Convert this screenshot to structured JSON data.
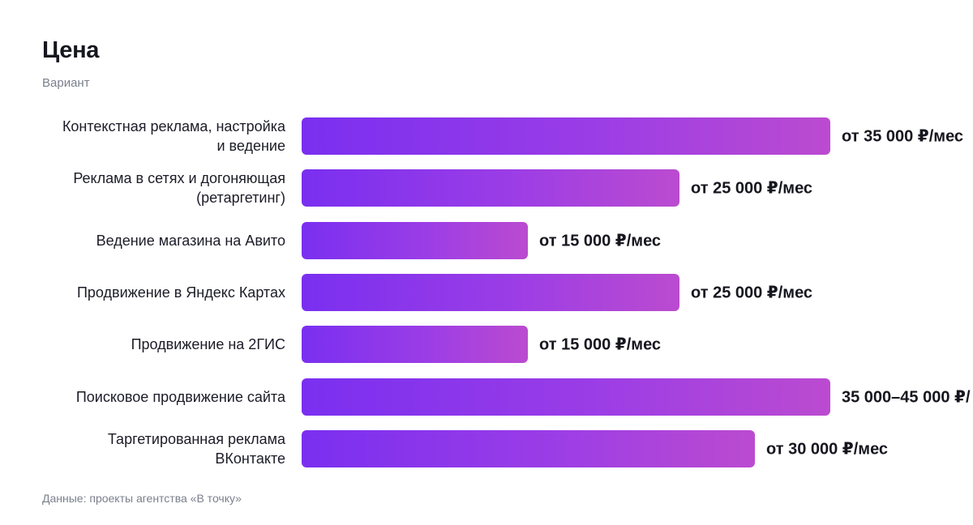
{
  "chart_data": {
    "type": "bar",
    "orientation": "horizontal",
    "title": "Цена",
    "subtitle": "Вариант",
    "source": "Данные: проекты агентства «В точку»",
    "categories": [
      "Контекстная реклама, настройка\nи ведение",
      "Реклама в сетях и догоняющая\n(ретаргетинг)",
      "Ведение магазина на Авито",
      "Продвижение в Яндекс Картах",
      "Продвижение на 2ГИС",
      "Поисковое продвижение сайта",
      "Таргетированная реклама\nВКонтакте"
    ],
    "values": [
      35000,
      25000,
      15000,
      25000,
      15000,
      35000,
      30000
    ],
    "value_labels": [
      "от 35 000 ₽/мес",
      "от 25 000 ₽/мес",
      "от 15 000 ₽/мес",
      "от 25 000 ₽/мес",
      "от 15 000 ₽/мес",
      "35 000–45 000 ₽/",
      "от 30 000 ₽/мес"
    ],
    "xlim": [
      0,
      35000
    ],
    "grid": false,
    "colors": {
      "bar_start": "#7a2ff0",
      "bar_end": "#bb4bd0"
    }
  }
}
